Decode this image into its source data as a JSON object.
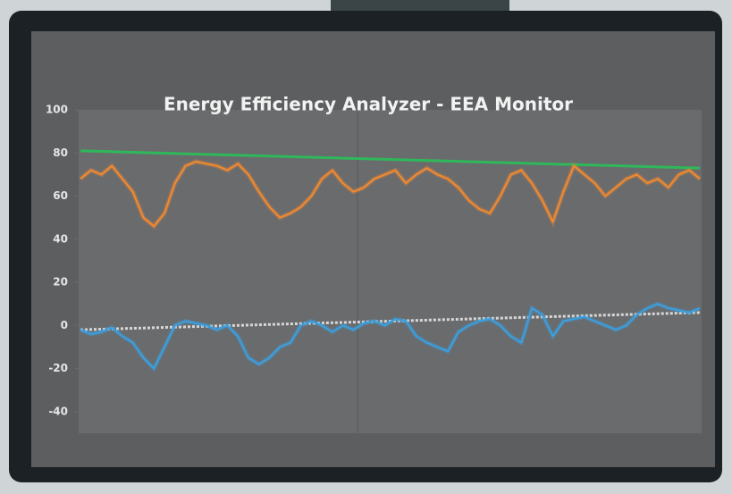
{
  "chart_data": {
    "type": "line",
    "title": "Energy Efficiency Analyzer - EEA Monitor",
    "categories": [
      null,
      null,
      null,
      null,
      null,
      null,
      null,
      null,
      null,
      null,
      null,
      null,
      null,
      null,
      null,
      null,
      null,
      null,
      null,
      null,
      null,
      null,
      null,
      null,
      null,
      null,
      null,
      null,
      null,
      null,
      null,
      null,
      null,
      null,
      null,
      null,
      null,
      null,
      null,
      null,
      null,
      null,
      null,
      null,
      null,
      null,
      null,
      null,
      null,
      null,
      null,
      null,
      null,
      null,
      null,
      null,
      null,
      null,
      null,
      null
    ],
    "series": [
      {
        "color": "#f28a30",
        "values": [
          68,
          72,
          70,
          74,
          68,
          62,
          50,
          46,
          52,
          66,
          74,
          76,
          75,
          74,
          72,
          75,
          70,
          62,
          55,
          50,
          52,
          55,
          60,
          68,
          72,
          66,
          62,
          64,
          68,
          70,
          72,
          66,
          70,
          73,
          70,
          68,
          64,
          58,
          54,
          52,
          60,
          70,
          72,
          66,
          58,
          48,
          62,
          74,
          70,
          66,
          60,
          64,
          68,
          70,
          66,
          68,
          64,
          70,
          72,
          68
        ]
      },
      {
        "color": "#3aa0e0",
        "values": [
          -2,
          -4,
          -3,
          -1,
          -5,
          -8,
          -15,
          -20,
          -10,
          0,
          2,
          1,
          0,
          -2,
          0,
          -5,
          -15,
          -18,
          -15,
          -10,
          -8,
          0,
          2,
          0,
          -3,
          0,
          -2,
          1,
          2,
          0,
          3,
          2,
          -5,
          -8,
          -10,
          -12,
          -3,
          0,
          2,
          3,
          0,
          -5,
          -8,
          8,
          5,
          -5,
          2,
          3,
          4,
          2,
          0,
          -2,
          0,
          5,
          8,
          10,
          8,
          7,
          6,
          8
        ]
      }
    ],
    "trend_lines": [
      {
        "color": "#2fb85a",
        "values": [
          81,
          73
        ]
      },
      {
        "color": "#d8d8d8",
        "values": [
          -2,
          6
        ],
        "dashed": true
      }
    ],
    "ylim": [
      -50,
      100
    ],
    "yticks": [
      -40,
      -20,
      0,
      20,
      40,
      60,
      80,
      100
    ]
  }
}
